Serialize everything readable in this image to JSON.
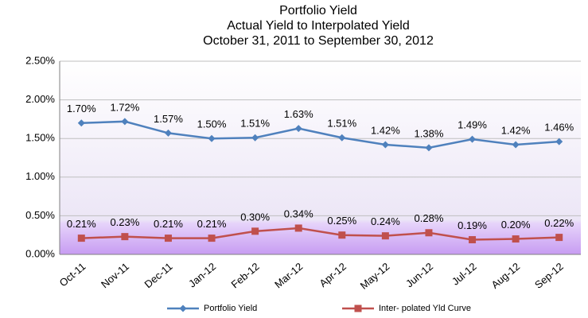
{
  "chart_data": {
    "type": "line",
    "title": "Portfolio Yield",
    "subtitle": [
      "Actual Yield to Interpolated Yield",
      "October 31, 2011  to  September 30,  2012"
    ],
    "categories": [
      "Oct-11",
      "Nov-11",
      "Dec-11",
      "Jan-12",
      "Feb-12",
      "Mar-12",
      "Apr-12",
      "May-12",
      "Jun-12",
      "Jul-12",
      "Aug-12",
      "Sep-12"
    ],
    "series": [
      {
        "name": "Portfolio  Yield",
        "color": "#4f81bd",
        "marker": "diamond",
        "values": [
          1.7,
          1.72,
          1.57,
          1.5,
          1.51,
          1.63,
          1.51,
          1.42,
          1.38,
          1.49,
          1.42,
          1.46
        ],
        "value_labels": [
          "1.70%",
          "1.72%",
          "1.57%",
          "1.50%",
          "1.51%",
          "1.63%",
          "1.51%",
          "1.42%",
          "1.38%",
          "1.49%",
          "1.42%",
          "1.46%"
        ]
      },
      {
        "name": "Inter- polated Yld Curve",
        "color": "#c0504d",
        "marker": "square",
        "values": [
          0.21,
          0.23,
          0.21,
          0.21,
          0.3,
          0.34,
          0.25,
          0.24,
          0.28,
          0.19,
          0.2,
          0.22
        ],
        "value_labels": [
          "0.21%",
          "0.23%",
          "0.21%",
          "0.21%",
          "0.30%",
          "0.34%",
          "0.25%",
          "0.24%",
          "0.28%",
          "0.19%",
          "0.20%",
          "0.22%"
        ]
      }
    ],
    "ylim": [
      0,
      2.5
    ],
    "yticks": [
      {
        "value": 0,
        "label": "0.00%"
      },
      {
        "value": 0.5,
        "label": "0.50%"
      },
      {
        "value": 1,
        "label": "1.00%"
      },
      {
        "value": 1.5,
        "label": "1.50%"
      },
      {
        "value": 2,
        "label": "2.00%"
      },
      {
        "value": 2.5,
        "label": "2.50%"
      }
    ],
    "grid": true,
    "legend": "bottom"
  }
}
